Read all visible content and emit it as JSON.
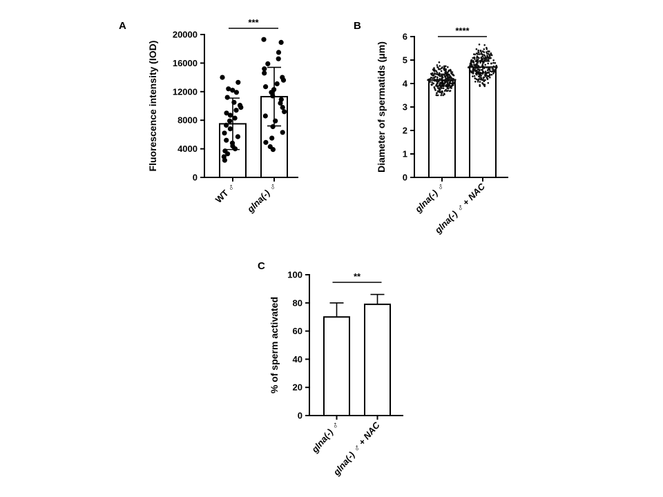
{
  "chart_data": [
    {
      "panel": "A",
      "type": "bar",
      "ylabel": "Fluorescence intensity (IOD)",
      "ylim": [
        0,
        20000
      ],
      "yticks": [
        "0",
        "4000",
        "8000",
        "12000",
        "16000",
        "20000"
      ],
      "categories": [
        "WT ♂",
        "glna(-) ♂"
      ],
      "category_italic": [
        false,
        true
      ],
      "values": [
        7500,
        11300
      ],
      "errors": [
        3600,
        4100
      ],
      "points": [
        [
          14000,
          13300,
          12400,
          12200,
          11900,
          11200,
          10500,
          10100,
          9800,
          9400,
          9000,
          8700,
          8300,
          7900,
          7300,
          6800,
          6200,
          5700,
          5200,
          4800,
          4400,
          4000,
          3700,
          3300,
          2900,
          2400
        ],
        [
          19300,
          18900,
          17500,
          16600,
          15900,
          15200,
          14600,
          14000,
          13600,
          13100,
          12700,
          12300,
          11900,
          11400,
          10900,
          10400,
          9800,
          9200,
          8600,
          7900,
          7100,
          6300,
          5500,
          4900,
          4300,
          3900
        ]
      ],
      "significance": "***"
    },
    {
      "panel": "B",
      "type": "bar",
      "ylabel": "Diameter of spermatids (μm)",
      "ylim": [
        0,
        6
      ],
      "yticks": [
        "0",
        "1",
        "2",
        "3",
        "4",
        "5",
        "6"
      ],
      "categories": [
        "glna(-) ♂",
        "glna(-) ♂ + NAC"
      ],
      "category_italic": [
        true,
        true
      ],
      "values": [
        4.15,
        4.7
      ],
      "errors": [
        0.25,
        0.25
      ],
      "point_spread": [
        [
          3.5,
          5.3
        ],
        [
          3.55,
          5.85
        ]
      ],
      "significance": "****"
    },
    {
      "panel": "C",
      "type": "bar",
      "ylabel": "% of sperm activated",
      "ylim": [
        0,
        100
      ],
      "yticks": [
        "0",
        "20",
        "40",
        "60",
        "80",
        "100"
      ],
      "categories": [
        "glna(-) ♂",
        "glna(-) ♂ + NAC"
      ],
      "category_italic": [
        true,
        true
      ],
      "values": [
        70,
        79
      ],
      "errors": [
        10,
        7
      ],
      "significance": "**"
    }
  ]
}
